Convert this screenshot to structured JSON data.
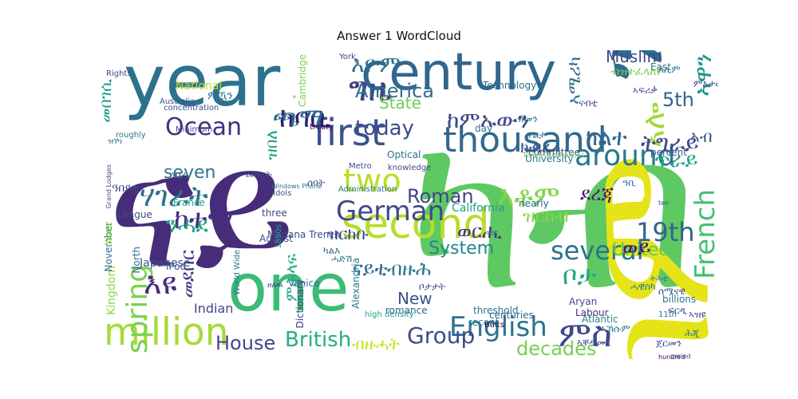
{
  "chart_data": {
    "type": "wordcloud",
    "title": "Answer 1 WordCloud",
    "words": [
      {
        "text": "ናይ",
        "color": "#472c7a"
      },
      {
        "text": "year",
        "color": "#2c728e"
      },
      {
        "text": "ካብ",
        "color": "#5ec962"
      },
      {
        "text": "ን",
        "color": "#2f6c8e"
      },
      {
        "text": "ከም",
        "color": "#e5e419"
      },
      {
        "text": "one",
        "color": "#3bbb75"
      },
      {
        "text": "century",
        "color": "#31668e"
      },
      {
        "text": "second",
        "color": "#b5de2b"
      },
      {
        "text": "thousand",
        "color": "#31688e"
      },
      {
        "text": "million",
        "color": "#a5db36"
      },
      {
        "text": "first",
        "color": "#3b518b"
      },
      {
        "text": "two",
        "color": "#b8de29"
      },
      {
        "text": "German",
        "color": "#3e4989"
      },
      {
        "text": "English",
        "color": "#2c728e"
      },
      {
        "text": "ግዜ",
        "color": "#433e85"
      },
      {
        "text": "Ocean",
        "color": "#472d7b"
      },
      {
        "text": "spring",
        "color": "#7ad151"
      },
      {
        "text": "French",
        "color": "#44bf70"
      },
      {
        "text": "around",
        "color": "#2a778e"
      },
      {
        "text": "ምስ",
        "color": "#3e4989"
      },
      {
        "text": "ከባቢ",
        "color": "#2d1e6f"
      },
      {
        "text": "ሃገራት",
        "color": "#2c728e"
      },
      {
        "text": "እዩ",
        "color": "#472d7b"
      },
      {
        "text": "ኣሎ",
        "color": "#a0da39"
      },
      {
        "text": "British",
        "color": "#26ad81"
      },
      {
        "text": "Group",
        "color": "#3e4a89"
      },
      {
        "text": "19th",
        "color": "#33638d"
      },
      {
        "text": "several",
        "color": "#2c718e"
      },
      {
        "text": "today",
        "color": "#3d4d8a"
      },
      {
        "text": "America",
        "color": "#2e6f8e"
      },
      {
        "text": "ከተማ",
        "color": "#472f7d"
      },
      {
        "text": "እቶም",
        "color": "#85d54a"
      },
      {
        "text": "ከምኡውን",
        "color": "#3e4989"
      },
      {
        "text": "እዮም",
        "color": "#2e6e8e"
      },
      {
        "text": "ኣሜሪካ",
        "color": "#2e6f8e"
      },
      {
        "text": "ኣዋን",
        "color": "#21918c"
      },
      {
        "text": "Roman",
        "color": "#404688"
      },
      {
        "text": "House",
        "color": "#3f4889"
      },
      {
        "text": "decades",
        "color": "#75d054"
      },
      {
        "text": "Muslim",
        "color": "#3e4989"
      },
      {
        "text": "ጫማ",
        "color": "#31688e"
      },
      {
        "text": "ንሓደ",
        "color": "#1fa088"
      },
      {
        "text": "ደረጃ",
        "color": "#481a6c"
      },
      {
        "text": "ወርሒ",
        "color": "#472c7a"
      },
      {
        "text": "ብዙሓት",
        "color": "#c8e020"
      },
      {
        "text": "ዝርከብ",
        "color": "#8bd646"
      },
      {
        "text": "ቦታ",
        "color": "#22a884"
      },
      {
        "text": "ናይቲ",
        "color": "#33638d"
      },
      {
        "text": "ብዙሕ",
        "color": "#2a788e"
      },
      {
        "text": "ክልተ",
        "color": "#31678e"
      },
      {
        "text": "ኣብ",
        "color": "#39558c"
      },
      {
        "text": "United",
        "color": "#5ec962"
      },
      {
        "text": "System",
        "color": "#25838e"
      },
      {
        "text": "New",
        "color": "#3b528b"
      },
      {
        "text": "State",
        "color": "#6ccd5a"
      },
      {
        "text": "5th",
        "color": "#33638d"
      },
      {
        "text": "seven",
        "color": "#2a768e"
      },
      {
        "text": "ወይ",
        "color": "#471365"
      },
      {
        "text": "ትግራይ",
        "color": "#3e4989"
      },
      {
        "text": "ጥራይ",
        "color": "#1fa188"
      },
      {
        "text": "ክብረ",
        "color": "#3b528b"
      },
      {
        "text": "ዝበለ",
        "color": "#1f9e89"
      },
      {
        "text": "ምሕላፍ",
        "color": "#22a785"
      },
      {
        "text": "መደበር",
        "color": "#443a83"
      },
      {
        "text": "መበገሲ",
        "color": "#1f9a8a"
      },
      {
        "text": "Indian",
        "color": "#404688"
      },
      {
        "text": "Japanese",
        "color": "#3b528b"
      },
      {
        "text": "Kingdom",
        "color": "#8fd744"
      },
      {
        "text": "November",
        "color": "#2c728e"
      },
      {
        "text": "League",
        "color": "#3e4989"
      },
      {
        "text": "North",
        "color": "#2c728e"
      },
      {
        "text": "iPod",
        "color": "#3b528b"
      },
      {
        "text": "Xbox",
        "color": "#a2da37"
      },
      {
        "text": "France",
        "color": "#22a884"
      },
      {
        "text": "National",
        "color": "#bddf26"
      },
      {
        "text": "Technology",
        "color": "#2e6e8e"
      },
      {
        "text": "University",
        "color": "#2e6f8e"
      },
      {
        "text": "California",
        "color": "#1fa088"
      },
      {
        "text": "Venice",
        "color": "#2d708e"
      },
      {
        "text": "Dictionary",
        "color": "#3f4788"
      },
      {
        "text": "Alexandria",
        "color": "#287c8e"
      },
      {
        "text": "Atlantic",
        "color": "#25858e"
      },
      {
        "text": "Labour",
        "color": "#472a7a"
      },
      {
        "text": "Aryan",
        "color": "#3e4989"
      },
      {
        "text": "threshold",
        "color": "#2a778e"
      },
      {
        "text": "centuries",
        "color": "#31688e"
      },
      {
        "text": "romance",
        "color": "#34608d"
      },
      {
        "text": "recent",
        "color": "#26818e"
      },
      {
        "text": "billions",
        "color": "#2c728e"
      },
      {
        "text": "percent",
        "color": "#3b528b"
      },
      {
        "text": "committee",
        "color": "#3e4989"
      },
      {
        "text": "nearly",
        "color": "#31688e"
      },
      {
        "text": "Administration",
        "color": "#2c728e"
      },
      {
        "text": "Metro",
        "color": "#3b528b"
      },
      {
        "text": "knowledge",
        "color": "#3e4a89"
      },
      {
        "text": "Optical",
        "color": "#2c728e"
      },
      {
        "text": "Rights",
        "color": "#3e4989"
      },
      {
        "text": "Australia",
        "color": "#3b528b"
      },
      {
        "text": "Cambridge",
        "color": "#7ad151"
      },
      {
        "text": "York",
        "color": "#3e4989"
      },
      {
        "text": "East",
        "color": "#2c728e"
      },
      {
        "text": "concentration",
        "color": "#3e4a89"
      },
      {
        "text": "roughly",
        "color": "#2c728e"
      },
      {
        "text": "Minimum",
        "color": "#3e4989"
      },
      {
        "text": "treaty",
        "color": "#440154"
      },
      {
        "text": "day",
        "color": "#2c728e"
      },
      {
        "text": "Idols",
        "color": "#3b528b"
      },
      {
        "text": "three",
        "color": "#3e4989"
      },
      {
        "text": "August",
        "color": "#3e4989"
      },
      {
        "text": "Mariana Trench",
        "color": "#3e4989"
      },
      {
        "text": "1890s",
        "color": "#22a884"
      },
      {
        "text": "high density",
        "color": "#1fa088"
      },
      {
        "text": "Balts",
        "color": "#440154"
      },
      {
        "text": "hundred",
        "color": "#440154"
      },
      {
        "text": "period",
        "color": "#3e4989"
      },
      {
        "text": "11th",
        "color": "#2c728e"
      },
      {
        "text": "ten",
        "color": "#3e4989"
      },
      {
        "text": "Windows Phone",
        "color": "#2c728e"
      },
      {
        "text": "Grand Lodges",
        "color": "#3e4989"
      },
      {
        "text": "World Wide",
        "color": "#2c728e"
      },
      {
        "text": "Timely Publications",
        "color": "#6ccd5a"
      },
      {
        "text": "v",
        "color": "#3e4989"
      },
      {
        "text": "ዝርከቡ",
        "color": "#3e4989"
      },
      {
        "text": "ሰሜናዊ",
        "color": "#3e4989"
      },
      {
        "text": "ፍርዲ",
        "color": "#3e4989"
      },
      {
        "text": "ትሕቲ",
        "color": "#2c728e"
      },
      {
        "text": "መሰረት",
        "color": "#3e4989"
      },
      {
        "text": "ብዝተፈላለየ",
        "color": "#7ad151"
      },
      {
        "text": "ምዃን",
        "color": "#2c728e"
      },
      {
        "text": "ዓበይቲ",
        "color": "#3e4989"
      },
      {
        "text": "ዋልታ",
        "color": "#2c728e"
      },
      {
        "text": "ኣፍሪቃ",
        "color": "#3e4989"
      },
      {
        "text": "ሓደ",
        "color": "#2c728e"
      },
      {
        "text": "ነበረ",
        "color": "#3e4989"
      },
      {
        "text": "ዓቢ",
        "color": "#2c728e"
      },
      {
        "text": "ኣቐዲሙ",
        "color": "#3e4989"
      },
      {
        "text": "ካልእ",
        "color": "#2c728e"
      },
      {
        "text": "ዘለዉ",
        "color": "#3e4989"
      },
      {
        "text": "ሕጂ",
        "color": "#2c728e"
      },
      {
        "text": "ኣዝዩ",
        "color": "#3e4989"
      },
      {
        "text": "ጸሊም",
        "color": "#2c728e"
      },
      {
        "text": "ምእታው",
        "color": "#3e4989"
      },
      {
        "text": "ኣኽሱም",
        "color": "#2c728e"
      },
      {
        "text": "ጀርመን",
        "color": "#3e4989"
      },
      {
        "text": "ሓዊስካ",
        "color": "#2c728e"
      },
      {
        "text": "ናብቲ",
        "color": "#3e4989"
      },
      {
        "text": "ዘመን",
        "color": "#2c728e"
      },
      {
        "text": "ሰባት",
        "color": "#3e4989"
      },
      {
        "text": "ሓድሽ",
        "color": "#2c728e"
      },
      {
        "text": "ቦታታት",
        "color": "#3e4989"
      },
      {
        "text": "ዝኾነ",
        "color": "#2c728e"
      }
    ]
  }
}
